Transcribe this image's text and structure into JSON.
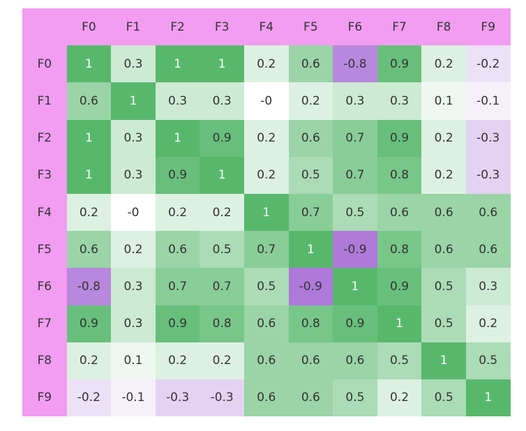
{
  "chart_data": {
    "type": "heatmap",
    "x_labels": [
      "F0",
      "F1",
      "F2",
      "F3",
      "F4",
      "F5",
      "F6",
      "F7",
      "F8",
      "F9"
    ],
    "y_labels": [
      "F0",
      "F1",
      "F2",
      "F3",
      "F4",
      "F5",
      "F6",
      "F7",
      "F8",
      "F9"
    ],
    "values": [
      [
        "1",
        "0.3",
        "1",
        "1",
        "0.2",
        "0.6",
        "-0.8",
        "0.9",
        "0.2",
        "-0.2"
      ],
      [
        "0.6",
        "1",
        "0.3",
        "0.3",
        "-0",
        "0.2",
        "0.3",
        "0.3",
        "0.1",
        "-0.1"
      ],
      [
        "1",
        "0.3",
        "1",
        "0.9",
        "0.2",
        "0.6",
        "0.7",
        "0.9",
        "0.2",
        "-0.3"
      ],
      [
        "1",
        "0.3",
        "0.9",
        "1",
        "0.2",
        "0.5",
        "0.7",
        "0.8",
        "0.2",
        "-0.3"
      ],
      [
        "0.2",
        "-0",
        "0.2",
        "0.2",
        "1",
        "0.7",
        "0.5",
        "0.6",
        "0.6",
        "0.6"
      ],
      [
        "0.6",
        "0.2",
        "0.6",
        "0.5",
        "0.7",
        "1",
        "-0.9",
        "0.8",
        "0.6",
        "0.6"
      ],
      [
        "-0.8",
        "0.3",
        "0.7",
        "0.7",
        "0.5",
        "-0.9",
        "1",
        "0.9",
        "0.5",
        "0.3"
      ],
      [
        "0.9",
        "0.3",
        "0.9",
        "0.8",
        "0.6",
        "0.8",
        "0.9",
        "1",
        "0.5",
        "0.2"
      ],
      [
        "0.2",
        "0.1",
        "0.2",
        "0.2",
        "0.6",
        "0.6",
        "0.6",
        "0.5",
        "1",
        "0.5"
      ],
      [
        "-0.2",
        "-0.1",
        "-0.3",
        "-0.3",
        "0.6",
        "0.6",
        "0.5",
        "0.2",
        "0.5",
        "1"
      ]
    ],
    "range": [
      -1,
      1
    ],
    "colors": {
      "positive": "#57b86c",
      "negative": "#a66ad6",
      "neutral": "#ffffff",
      "header": "#f29cf2",
      "text": "#333333",
      "text_on_strong": "#ffffff"
    }
  }
}
